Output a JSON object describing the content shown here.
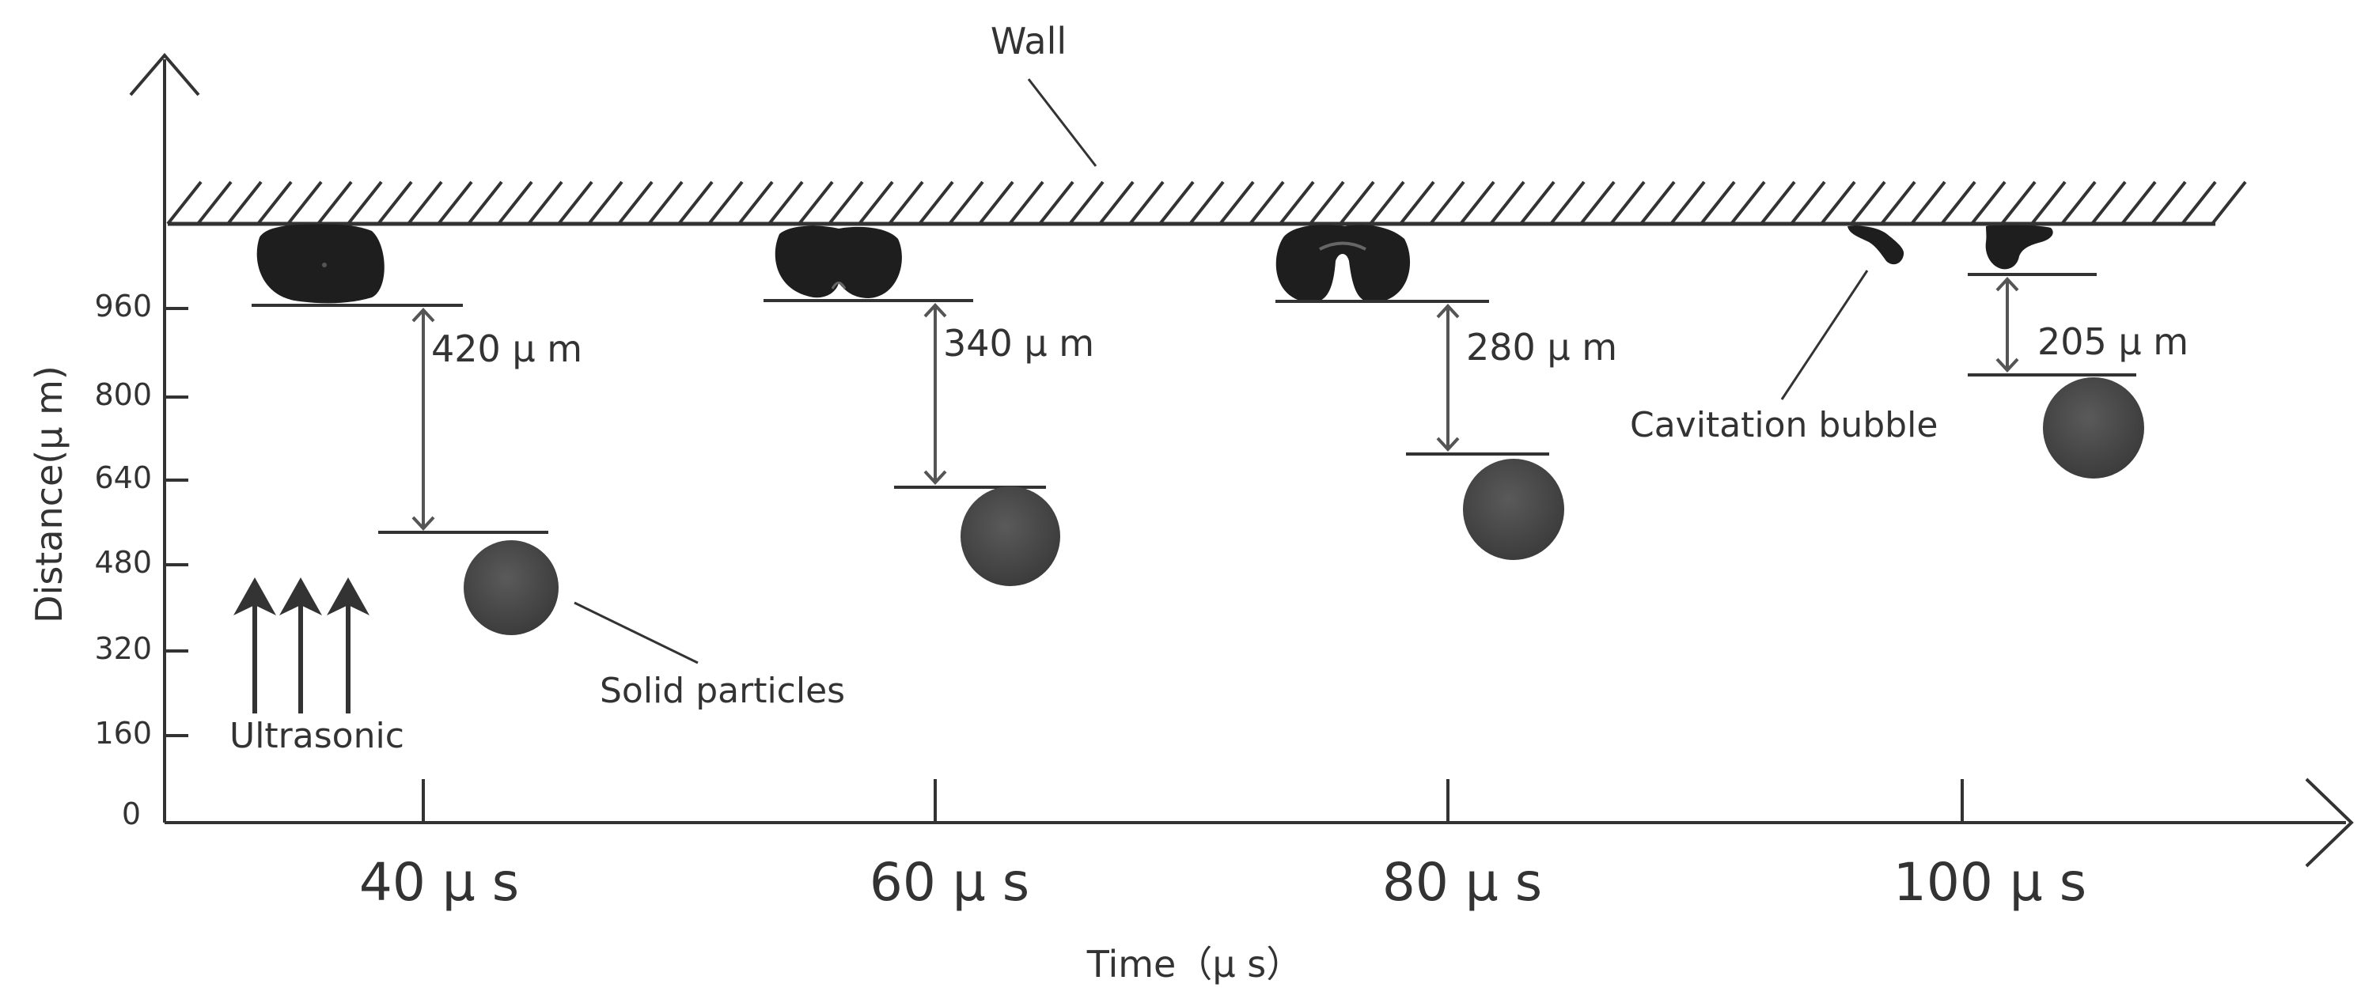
{
  "title": "",
  "labels": {
    "wall": "Wall",
    "solid_particles": "Solid particles",
    "cavitation_bubble": "Cavitation bubble",
    "ultrasonic": "Ultrasonic"
  },
  "axes": {
    "y_title": "Distance(μ m)",
    "x_title": "Time（μ s）",
    "y_ticks": [
      "0",
      "160",
      "320",
      "480",
      "640",
      "800",
      "960"
    ],
    "x_ticks": [
      "40 μ s",
      "60 μ s",
      "80 μ s",
      "100 μ s"
    ]
  },
  "measurements": [
    "420 μ m",
    "340 μ m",
    "280 μ m",
    "205 μ m"
  ],
  "colors": {
    "line": "#333333",
    "bubble": "#1e1e1e",
    "particle": "#4a4a4a"
  }
}
